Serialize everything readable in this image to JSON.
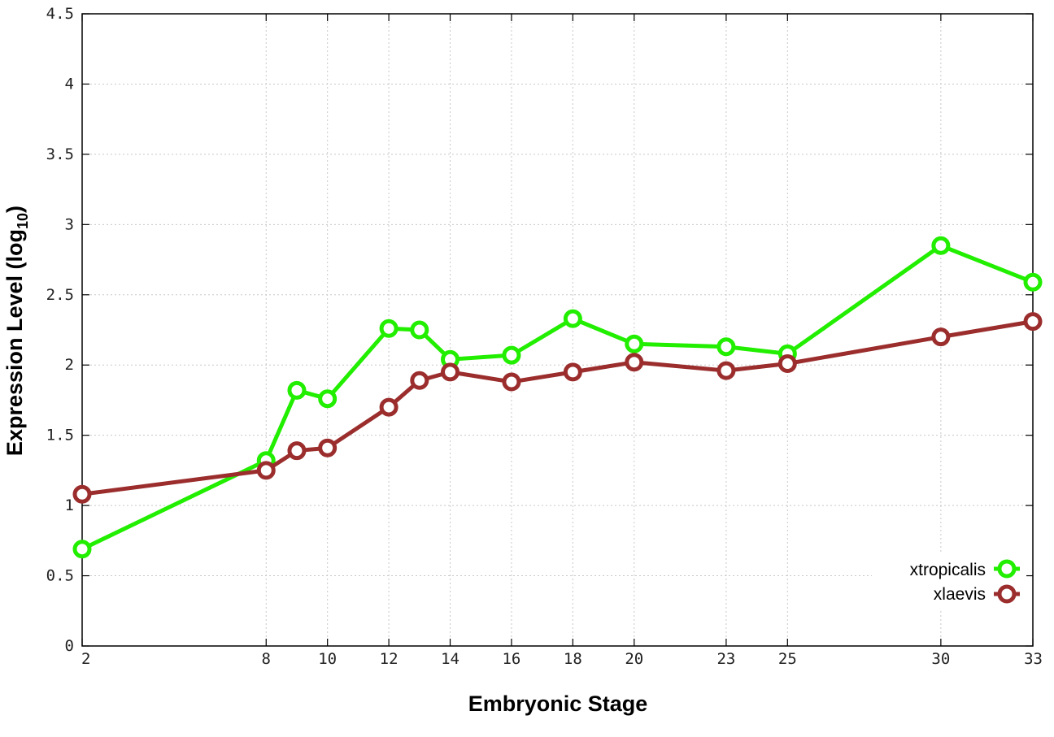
{
  "chart_data": {
    "type": "line",
    "xlabel": "Embryonic Stage",
    "ylabel": "Expression Level (log",
    "ylabel_subscript": "10",
    "ylabel_close": ")",
    "x_ticks": [
      2,
      8,
      10,
      12,
      14,
      16,
      18,
      20,
      23,
      25,
      30,
      33
    ],
    "y_ticks": [
      "0",
      "0.5",
      "1",
      "1.5",
      "2",
      "2.5",
      "3",
      "3.5",
      "4",
      "4.5"
    ],
    "xlim": [
      2,
      33
    ],
    "ylim": [
      0,
      4.5
    ],
    "grid": true,
    "legend_position": "bottom-right",
    "series": [
      {
        "name": "xtropicalis",
        "color": "#22ee00",
        "points": [
          [
            2,
            0.69
          ],
          [
            8,
            1.32
          ],
          [
            9,
            1.82
          ],
          [
            10,
            1.76
          ],
          [
            12,
            2.26
          ],
          [
            13,
            2.25
          ],
          [
            14,
            2.04
          ],
          [
            16,
            2.07
          ],
          [
            18,
            2.33
          ],
          [
            20,
            2.15
          ],
          [
            23,
            2.13
          ],
          [
            25,
            2.08
          ],
          [
            30,
            2.85
          ],
          [
            33,
            2.59
          ]
        ]
      },
      {
        "name": "xlaevis",
        "color": "#9b2d2d",
        "points": [
          [
            2,
            1.08
          ],
          [
            8,
            1.25
          ],
          [
            9,
            1.39
          ],
          [
            10,
            1.41
          ],
          [
            12,
            1.7
          ],
          [
            13,
            1.89
          ],
          [
            14,
            1.95
          ],
          [
            16,
            1.88
          ],
          [
            18,
            1.95
          ],
          [
            20,
            2.02
          ],
          [
            23,
            1.96
          ],
          [
            25,
            2.01
          ],
          [
            30,
            2.2
          ],
          [
            33,
            2.31
          ]
        ]
      }
    ]
  }
}
